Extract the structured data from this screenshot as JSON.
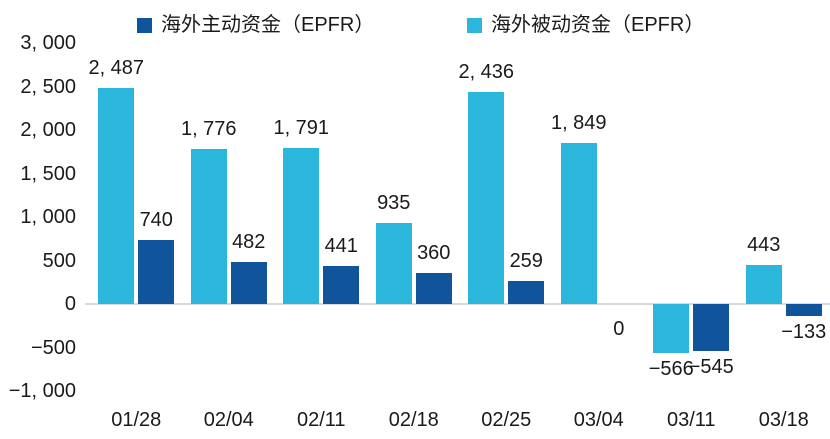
{
  "legend": {
    "items": [
      {
        "id": "active",
        "label": "海外主动资金（EPFR）",
        "color": "#10549C"
      },
      {
        "id": "passive",
        "label": "海外被动资金（EPFR）",
        "color": "#2BB7DC"
      }
    ]
  },
  "chart_data": {
    "type": "bar",
    "title": "",
    "xlabel": "",
    "ylabel": "",
    "categories": [
      "01/28",
      "02/04",
      "02/11",
      "02/18",
      "02/25",
      "03/04",
      "03/11",
      "03/18"
    ],
    "series": [
      {
        "name": "海外被动资金（EPFR）",
        "color": "#2BB7DC",
        "values": [
          2487,
          1776,
          1791,
          935,
          2436,
          1849,
          -566,
          443
        ],
        "labels": [
          "2, 487",
          "1, 776",
          "1, 791",
          "935",
          "2, 436",
          "1, 849",
          "−566",
          "443"
        ]
      },
      {
        "name": "海外主动资金（EPFR）",
        "color": "#10549C",
        "values": [
          740,
          482,
          441,
          360,
          259,
          0,
          -545,
          -133
        ],
        "labels": [
          "740",
          "482",
          "441",
          "360",
          "259",
          "0",
          "−545",
          "−133"
        ]
      }
    ],
    "y_axis": {
      "min": -1000,
      "max": 3000,
      "step": 500,
      "tick_labels": [
        "3, 000",
        "2, 500",
        "2, 000",
        "1, 500",
        "1, 000",
        "500",
        "0",
        "−500",
        "−1, 000"
      ]
    },
    "legend_position": "top",
    "grid": false,
    "zero_line_color": "#d9d9d9"
  }
}
